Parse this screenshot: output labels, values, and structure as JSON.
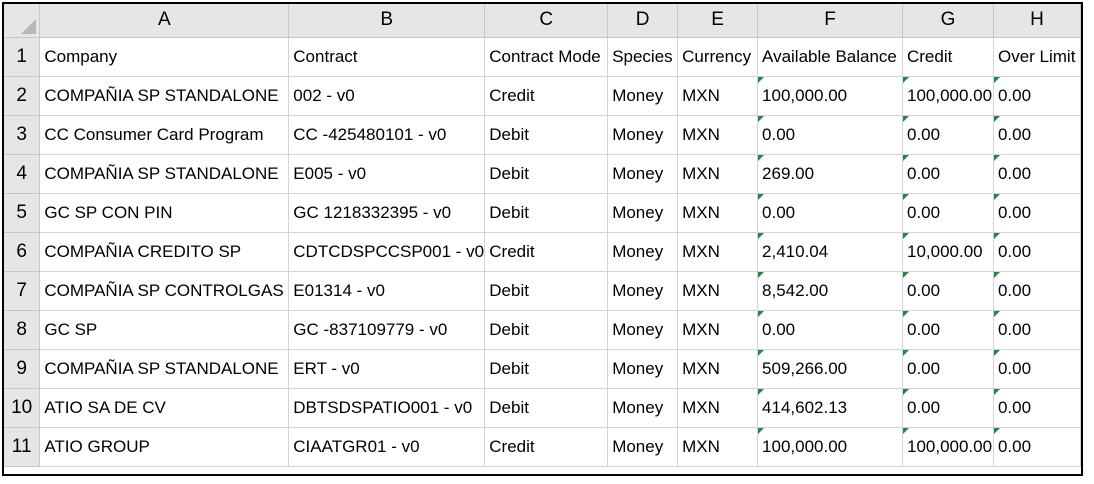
{
  "columns": [
    "A",
    "B",
    "C",
    "D",
    "E",
    "F",
    "G",
    "H"
  ],
  "headers": [
    "Company",
    "Contract",
    "Contract Mode",
    "Species",
    "Currency",
    "Available Balance",
    "Credit",
    "Over Limit"
  ],
  "rows": [
    {
      "num": "2",
      "cells": [
        "COMPAÑIA SP STANDALONE",
        "002 - v0",
        "Credit",
        "Money",
        "MXN",
        "100,000.00",
        "100,000.00",
        "0.00"
      ]
    },
    {
      "num": "3",
      "cells": [
        "CC Consumer Card Program",
        "CC -425480101 - v0",
        "Debit",
        "Money",
        "MXN",
        "0.00",
        "0.00",
        "0.00"
      ]
    },
    {
      "num": "4",
      "cells": [
        "COMPAÑIA SP STANDALONE",
        "E005 - v0",
        "Debit",
        "Money",
        "MXN",
        "269.00",
        "0.00",
        "0.00"
      ]
    },
    {
      "num": "5",
      "cells": [
        "GC SP CON PIN",
        "GC 1218332395 - v0",
        "Debit",
        "Money",
        "MXN",
        "0.00",
        "0.00",
        "0.00"
      ]
    },
    {
      "num": "6",
      "cells": [
        "COMPAÑIA CREDITO SP",
        "CDTCDSPCCSP001 - v0",
        "Credit",
        "Money",
        "MXN",
        "2,410.04",
        "10,000.00",
        "0.00"
      ]
    },
    {
      "num": "7",
      "cells": [
        "COMPAÑIA SP CONTROLGAS",
        "E01314 - v0",
        "Debit",
        "Money",
        "MXN",
        "8,542.00",
        "0.00",
        "0.00"
      ]
    },
    {
      "num": "8",
      "cells": [
        "GC SP",
        "GC -837109779 - v0",
        "Debit",
        "Money",
        "MXN",
        "0.00",
        "0.00",
        "0.00"
      ]
    },
    {
      "num": "9",
      "cells": [
        "COMPAÑIA SP STANDALONE",
        "ERT - v0",
        "Debit",
        "Money",
        "MXN",
        "509,266.00",
        "0.00",
        "0.00"
      ]
    },
    {
      "num": "10",
      "cells": [
        "ATIO SA DE CV",
        "DBTSDSPATIO001 - v0",
        "Debit",
        "Money",
        "MXN",
        "414,602.13",
        "0.00",
        "0.00"
      ]
    },
    {
      "num": "11",
      "cells": [
        "ATIO GROUP",
        "CIAATGR01 - v0",
        "Credit",
        "Money",
        "MXN",
        "100,000.00",
        "100,000.00",
        "0.00"
      ]
    }
  ],
  "header_row_num": "1"
}
